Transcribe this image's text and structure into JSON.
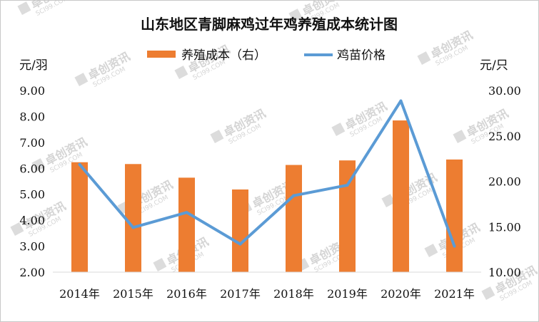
{
  "chart_data": {
    "type": "bar",
    "title": "山东地区青脚麻鸡过年鸡养殖成本统计图",
    "left_unit": "元/羽",
    "right_unit": "元/只",
    "categories": [
      "2014年",
      "2015年",
      "2016年",
      "2017年",
      "2018年",
      "2019年",
      "2020年",
      "2021年"
    ],
    "left_axis": {
      "min": 2.0,
      "max": 9.0,
      "step": 1.0,
      "ticks": [
        "2.00",
        "3.00",
        "4.00",
        "5.00",
        "6.00",
        "7.00",
        "8.00",
        "9.00"
      ]
    },
    "right_axis": {
      "min": 10.0,
      "max": 30.0,
      "step": 5.0,
      "ticks": [
        "10.00",
        "15.00",
        "20.00",
        "25.00",
        "30.00"
      ]
    },
    "series": [
      {
        "name": "养殖成本（右）",
        "kind": "bar",
        "axis": "right",
        "color": "#ED7D31",
        "values": [
          22.1,
          21.9,
          20.4,
          19.1,
          21.8,
          22.3,
          26.7,
          22.4
        ]
      },
      {
        "name": "鸡苗价格",
        "kind": "line",
        "axis": "left",
        "color": "#5B9BD5",
        "values": [
          6.15,
          3.72,
          4.3,
          3.08,
          4.95,
          5.35,
          8.6,
          3.0
        ]
      }
    ],
    "legend_position": "top-center",
    "grid": false,
    "watermark": {
      "cn": "卓创资讯",
      "en": "SCI99.COM"
    }
  }
}
